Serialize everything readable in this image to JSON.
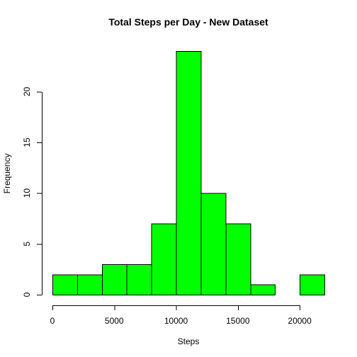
{
  "chart_data": {
    "type": "bar",
    "title": "Total Steps per Day - New Dataset",
    "xlabel": "Steps",
    "ylabel": "Frequency",
    "bin_edges": [
      0,
      2000,
      4000,
      6000,
      8000,
      10000,
      12000,
      14000,
      16000,
      18000,
      20000,
      22000
    ],
    "values": [
      2,
      2,
      3,
      3,
      7,
      24,
      10,
      7,
      1,
      0,
      2
    ],
    "xlim": [
      0,
      22000
    ],
    "ylim": [
      0,
      24
    ],
    "x_ticks": [
      0,
      5000,
      10000,
      15000,
      20000
    ],
    "y_ticks": [
      0,
      5,
      10,
      15,
      20
    ],
    "bar_color": "#00ff00",
    "edge_color": "#000000",
    "grid": false,
    "legend": "none"
  }
}
